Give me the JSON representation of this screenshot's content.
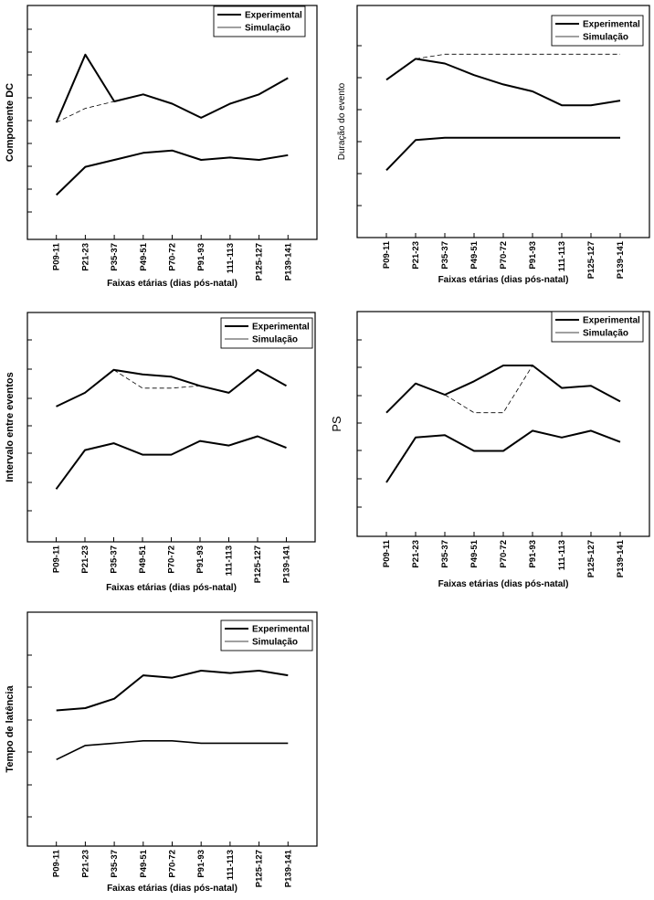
{
  "chart_data": [
    {
      "type": "line",
      "ylabel": "Componente DC",
      "xlabel": "Faixas etárias (dias pós-natal)",
      "categories": [
        "P09-11",
        "P21-23",
        "P35-37",
        "P49-51",
        "P70-72",
        "P91-93",
        "111-113",
        "P125-127",
        "P139-141"
      ],
      "ylim": [
        0,
        10
      ],
      "grid": false,
      "legend_position": "top-right",
      "series": [
        {
          "name": "Experimental",
          "role": "upper",
          "values": [
            5.0,
            7.9,
            5.9,
            6.2,
            5.8,
            5.2,
            5.8,
            6.2,
            6.9
          ]
        },
        {
          "name": "Simulação",
          "role": "upper",
          "style": "dashed",
          "values": [
            5.0,
            5.6,
            5.9,
            null,
            null,
            null,
            null,
            null,
            null
          ]
        },
        {
          "name": "Experimental",
          "role": "lower",
          "values": [
            1.9,
            3.1,
            3.4,
            3.7,
            3.8,
            3.4,
            3.5,
            3.4,
            3.6
          ]
        }
      ]
    },
    {
      "type": "line",
      "ylabel": "Duração do evento",
      "xlabel": "Faixas etárias (dias pós-natal)",
      "categories": [
        "P09-11",
        "P21-23",
        "P35-37",
        "P49-51",
        "P70-72",
        "P91-93",
        "111-113",
        "P125-127",
        "P139-141"
      ],
      "ylim": [
        0,
        10
      ],
      "grid": false,
      "legend_position": "top-right",
      "series": [
        {
          "name": "Experimental",
          "role": "upper",
          "values": [
            6.8,
            7.7,
            7.5,
            7.0,
            6.6,
            6.3,
            5.7,
            5.7,
            5.9
          ]
        },
        {
          "name": "Simulação",
          "role": "upper",
          "style": "dashed",
          "values": [
            null,
            7.7,
            7.9,
            7.9,
            7.9,
            7.9,
            7.9,
            7.9,
            7.9
          ]
        },
        {
          "name": "Experimental",
          "role": "lower",
          "values": [
            2.9,
            4.2,
            4.3,
            4.3,
            4.3,
            4.3,
            4.3,
            4.3,
            4.3
          ]
        }
      ]
    },
    {
      "type": "line",
      "ylabel": "Intervalo entre eventos",
      "xlabel": "Faixas etárias (dias pós-natal)",
      "categories": [
        "P09-11",
        "P21-23",
        "P35-37",
        "P49-51",
        "P70-72",
        "P91-93",
        "111-113",
        "P125-127",
        "P139-141"
      ],
      "ylim": [
        0,
        10
      ],
      "grid": false,
      "legend_position": "top-right",
      "series": [
        {
          "name": "Experimental",
          "role": "upper",
          "values": [
            5.9,
            6.5,
            7.5,
            7.3,
            7.2,
            6.8,
            6.5,
            7.5,
            6.8
          ]
        },
        {
          "name": "Simulação",
          "role": "upper",
          "style": "dashed",
          "values": [
            null,
            null,
            7.5,
            6.7,
            6.7,
            6.8,
            null,
            null,
            null
          ]
        },
        {
          "name": "Experimental",
          "role": "lower",
          "values": [
            2.3,
            4.0,
            4.3,
            3.8,
            3.8,
            4.4,
            4.2,
            4.6,
            4.1
          ]
        }
      ]
    },
    {
      "type": "line",
      "ylabel": "PS",
      "xlabel": "Faixas etárias (dias pós-natal)",
      "categories": [
        "P09-11",
        "P21-23",
        "P35-37",
        "P49-51",
        "P70-72",
        "P91-93",
        "111-113",
        "P125-127",
        "P139-141"
      ],
      "ylim": [
        0,
        10
      ],
      "grid": false,
      "legend_position": "top-right",
      "series": [
        {
          "name": "Experimental",
          "role": "upper",
          "values": [
            5.5,
            6.8,
            6.3,
            6.9,
            7.6,
            7.6,
            6.6,
            6.7,
            6.0
          ]
        },
        {
          "name": "Simulação",
          "role": "upper",
          "style": "dashed",
          "values": [
            null,
            null,
            6.3,
            5.5,
            5.5,
            7.6,
            null,
            null,
            null
          ]
        },
        {
          "name": "Experimental",
          "role": "lower",
          "values": [
            2.4,
            4.4,
            4.5,
            3.8,
            3.8,
            4.7,
            4.4,
            4.7,
            4.2
          ]
        }
      ]
    },
    {
      "type": "line",
      "ylabel": "Tempo de latência",
      "xlabel": "Faixas etárias (dias pós-natal)",
      "categories": [
        "P09-11",
        "P21-23",
        "P35-37",
        "P49-51",
        "P70-72",
        "P91-93",
        "111-113",
        "P125-127",
        "P139-141"
      ],
      "ylim": [
        0,
        10
      ],
      "grid": false,
      "legend_position": "top-right",
      "series": [
        {
          "name": "Experimental",
          "role": "upper",
          "values": [
            5.8,
            5.9,
            6.3,
            7.3,
            7.2,
            7.5,
            7.4,
            7.5,
            7.3
          ]
        },
        {
          "name": "Simulação",
          "role": "lower",
          "values": [
            3.7,
            4.3,
            4.4,
            4.5,
            4.5,
            4.4,
            4.4,
            4.4,
            4.4
          ]
        }
      ]
    }
  ]
}
